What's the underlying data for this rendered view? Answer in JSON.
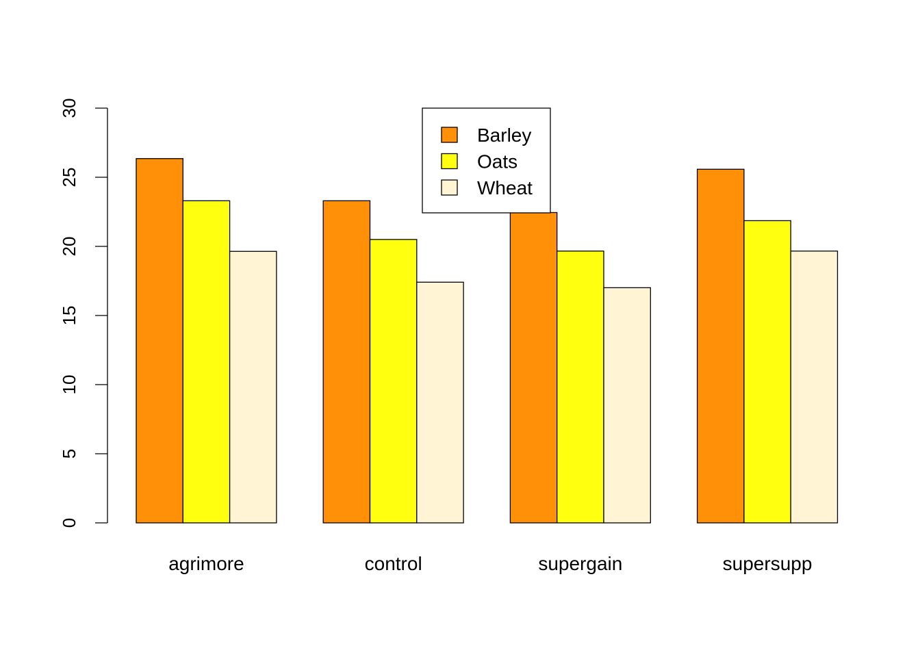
{
  "chart_data": {
    "type": "bar",
    "categories": [
      "agrimore",
      "control",
      "supergain",
      "supersupp"
    ],
    "series": [
      {
        "name": "Barley",
        "color": "#ff9008",
        "values": [
          26.35,
          23.3,
          22.45,
          25.58
        ]
      },
      {
        "name": "Oats",
        "color": "#ffff10",
        "values": [
          23.3,
          20.5,
          19.66,
          21.86
        ]
      },
      {
        "name": "Wheat",
        "color": "#fff5d4",
        "values": [
          19.64,
          17.41,
          17.01,
          19.66
        ]
      }
    ],
    "yticks": [
      "0",
      "5",
      "10",
      "15",
      "20",
      "25",
      "30"
    ],
    "ylim": [
      0,
      30
    ],
    "legend_position": "top-center",
    "grid": false
  }
}
